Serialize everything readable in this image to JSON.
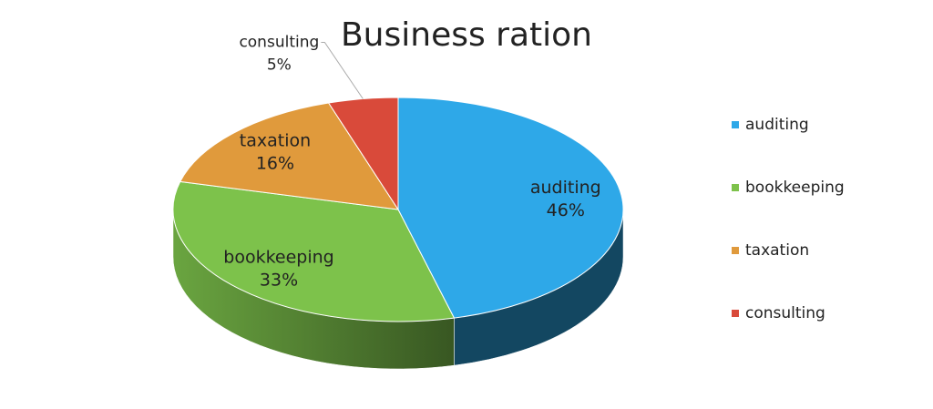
{
  "chart_data": {
    "type": "pie3d",
    "title": "Business ration",
    "categories": [
      "auditing",
      "bookkeeping",
      "taxation",
      "consulting"
    ],
    "values": [
      46,
      33,
      16,
      5
    ],
    "value_labels": [
      "46%",
      "33%",
      "16%",
      "5%"
    ],
    "colors": [
      "#2ea8e8",
      "#7dc24b",
      "#e09a3c",
      "#d94a3a"
    ],
    "legend": "right"
  }
}
